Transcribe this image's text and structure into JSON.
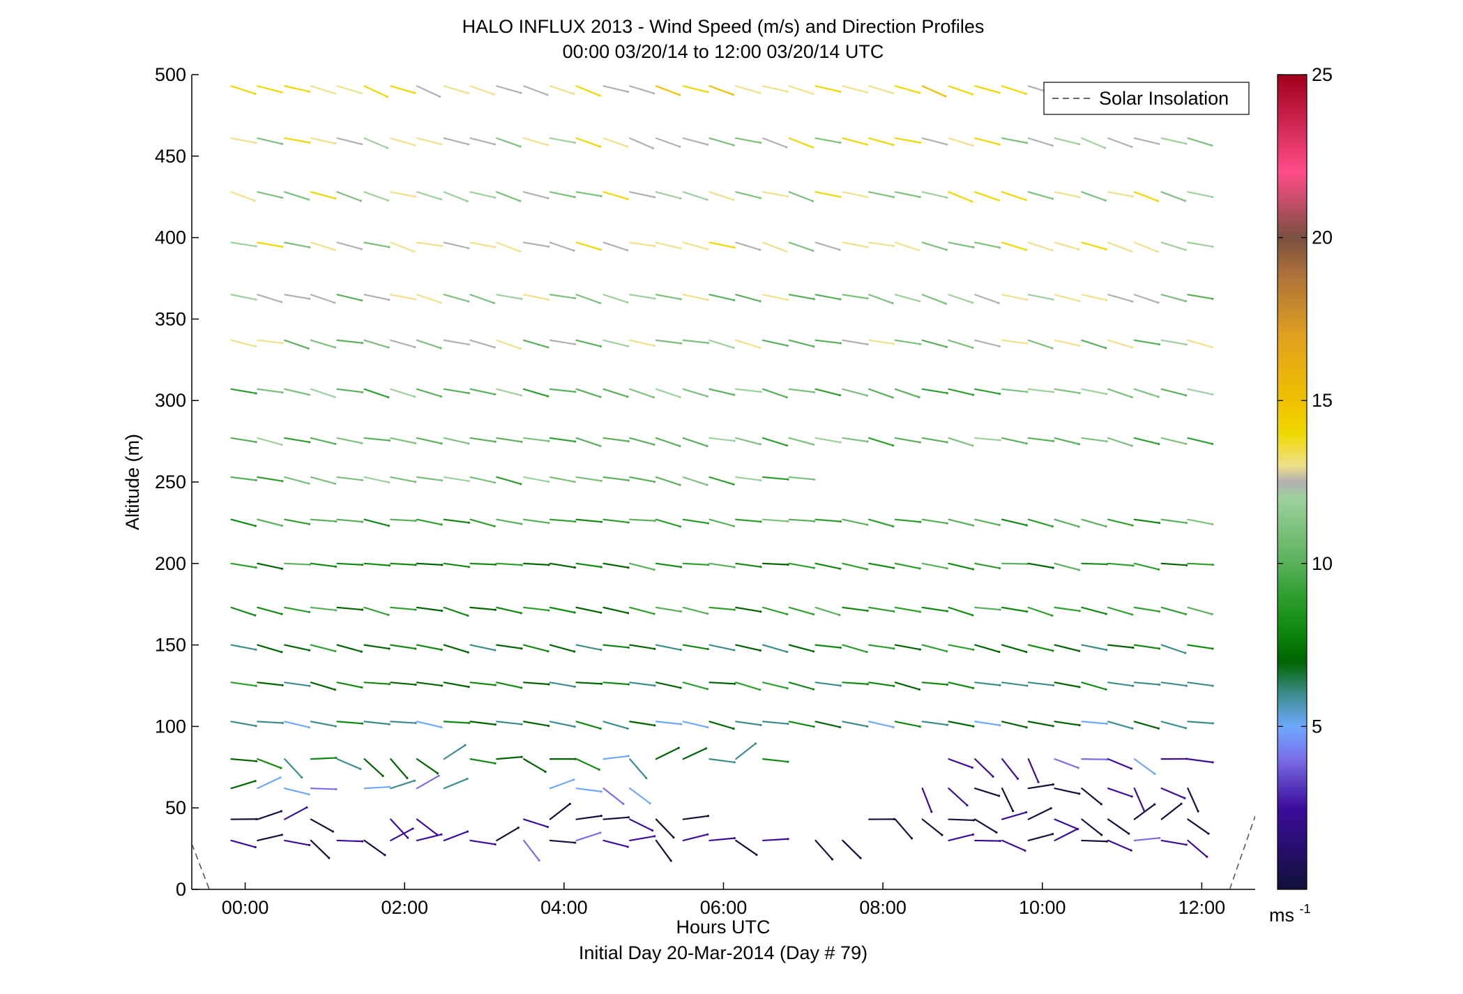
{
  "chart_data": {
    "type": "scatter",
    "title": "HALO INFLUX 2013 - Wind Speed (m/s) and Direction Profiles",
    "subtitle": "00:00 03/20/14 to 12:00 03/20/14  UTC",
    "xlabel": "Hours UTC",
    "xlabel2": "Initial Day 20-Mar-2014 (Day # 79)",
    "ylabel": "Altitude (m)",
    "xlim": [
      -0.67,
      12.67
    ],
    "ylim": [
      0,
      500
    ],
    "x_ticks": [
      0,
      2,
      4,
      6,
      8,
      10,
      12
    ],
    "x_tick_labels": [
      "00:00",
      "02:00",
      "04:00",
      "06:00",
      "08:00",
      "10:00",
      "12:00"
    ],
    "y_ticks": [
      0,
      50,
      100,
      150,
      200,
      250,
      300,
      350,
      400,
      450,
      500
    ],
    "y_tick_labels": [
      "0",
      "50",
      "100",
      "150",
      "200",
      "250",
      "300",
      "350",
      "400",
      "450",
      "500"
    ],
    "legend": {
      "entries": [
        "Solar Insolation"
      ],
      "placement": "top-right"
    },
    "colorbar": {
      "ticks": [
        5,
        10,
        15,
        20,
        25
      ],
      "tick_labels": [
        "5",
        "10",
        "15",
        "20",
        "25"
      ],
      "range": [
        0,
        25
      ],
      "unit_label": "ms",
      "unit_exponent": "-1"
    },
    "solar_insolation": [
      [
        -0.67,
        28
      ],
      [
        -0.45,
        0
      ],
      [
        12.35,
        0
      ],
      [
        12.67,
        45
      ]
    ],
    "barb_altitudes": [
      30,
      43,
      62,
      80,
      103,
      127,
      150,
      173,
      200,
      227,
      253,
      277,
      307,
      337,
      365,
      397,
      428,
      461,
      493
    ],
    "barb_times": [
      0,
      0.33,
      0.67,
      1,
      1.33,
      1.67,
      2,
      2.33,
      2.67,
      3,
      3.33,
      3.67,
      4,
      4.33,
      4.67,
      5,
      5.33,
      5.67,
      6,
      6.33,
      6.67,
      7,
      7.33,
      7.67,
      8,
      8.33,
      8.67,
      9,
      9.33,
      9.67,
      10,
      10.33,
      10.67,
      11,
      11.33,
      11.67,
      12
    ],
    "wind_profiles": [
      {
        "z": 30,
        "t0": 0,
        "t1": 12,
        "spd": 3,
        "dir": 280,
        "gaps": [
          [
            6.85,
            7.2
          ],
          [
            7.9,
            8.85
          ]
        ]
      },
      {
        "z": 43,
        "t0": 0,
        "t1": 12,
        "spd": 2,
        "dir": 275,
        "gaps": [
          [
            1.2,
            1.9
          ],
          [
            2.5,
            3.6
          ],
          [
            5.7,
            7.9
          ]
        ]
      },
      {
        "z": 62,
        "t0": 0,
        "t1": 5,
        "spd": 6,
        "dir": 285,
        "gaps": [
          [
            1.1,
            1.4
          ],
          [
            2.9,
            3.9
          ]
        ]
      },
      {
        "z": 62,
        "t0": 8.6,
        "t1": 12,
        "spd": 3,
        "dir": 300,
        "gaps": []
      },
      {
        "z": 80,
        "t0": 0,
        "t1": 6.7,
        "spd": 7,
        "dir": 275,
        "gaps": []
      },
      {
        "z": 80,
        "t0": 9,
        "t1": 12,
        "spd": 4,
        "dir": 300,
        "gaps": []
      },
      {
        "z": 103,
        "t0": 0,
        "t1": 12,
        "spd": 7,
        "dir": 280,
        "gaps": []
      },
      {
        "z": 127,
        "t0": 0,
        "t1": 12,
        "spd": 8,
        "dir": 280,
        "gaps": []
      },
      {
        "z": 150,
        "t0": 0,
        "t1": 12,
        "spd": 8,
        "dir": 282,
        "gaps": []
      },
      {
        "z": 173,
        "t0": 0,
        "t1": 12,
        "spd": 9,
        "dir": 282,
        "gaps": []
      },
      {
        "z": 200,
        "t0": 0,
        "t1": 12,
        "spd": 9,
        "dir": 278,
        "gaps": []
      },
      {
        "z": 227,
        "t0": 0,
        "t1": 12,
        "spd": 10,
        "dir": 280,
        "gaps": []
      },
      {
        "z": 253,
        "t0": 0,
        "t1": 7.3,
        "spd": 11,
        "dir": 282,
        "gaps": []
      },
      {
        "z": 277,
        "t0": 0,
        "t1": 12,
        "spd": 11,
        "dir": 282,
        "gaps": []
      },
      {
        "z": 307,
        "t0": 0,
        "t1": 12,
        "spd": 11,
        "dir": 283,
        "gaps": []
      },
      {
        "z": 337,
        "t0": 0,
        "t1": 12,
        "spd": 12,
        "dir": 283,
        "gaps": []
      },
      {
        "z": 365,
        "t0": 0,
        "t1": 12,
        "spd": 12,
        "dir": 285,
        "gaps": []
      },
      {
        "z": 397,
        "t0": 0,
        "t1": 12,
        "spd": 13,
        "dir": 285,
        "gaps": []
      },
      {
        "z": 428,
        "t0": 0,
        "t1": 12,
        "spd": 13,
        "dir": 286,
        "gaps": []
      },
      {
        "z": 461,
        "t0": 0,
        "t1": 12,
        "spd": 13,
        "dir": 287,
        "gaps": []
      },
      {
        "z": 493,
        "t0": 0,
        "t1": 12,
        "spd": 14,
        "dir": 288,
        "gaps": []
      }
    ],
    "colors": {
      "0": "#10103a",
      "2.5": "#3c0c9c",
      "4": "#7a6ee8",
      "5": "#6fa8ff",
      "6": "#3c8c8c",
      "7": "#006400",
      "8": "#0f8a0f",
      "9": "#2e9e2e",
      "10": "#5ab05a",
      "11": "#7cc07c",
      "12": "#9ed09e",
      "12.5": "#b0b0b0",
      "13": "#efe08a",
      "14": "#f0d800",
      "15": "#f0c000",
      "17": "#e0a020",
      "19": "#a86e3c",
      "20": "#7a5040",
      "22": "#ff4c88",
      "25": "#a0001c"
    }
  }
}
